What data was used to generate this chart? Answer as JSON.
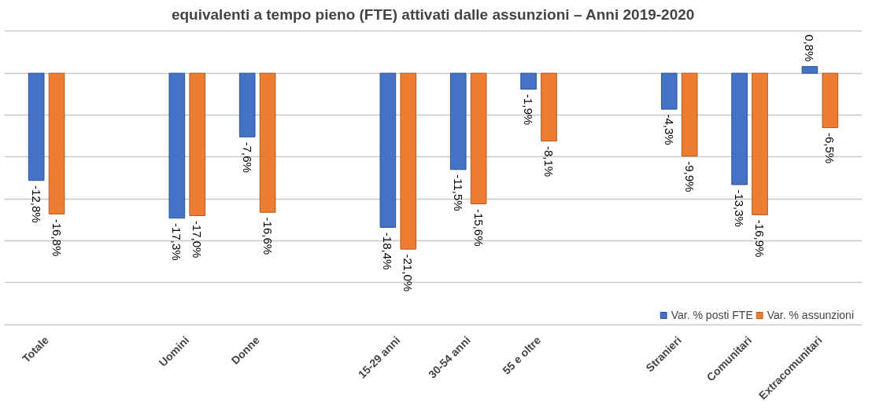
{
  "chart_data": {
    "type": "bar",
    "title": "equivalenti a tempo pieno (FTE) attivati dalle assunzioni – Anni 2019-2020",
    "categories": [
      "Totale",
      null,
      "Uomini",
      "Donne",
      null,
      "15-29 anni",
      "30-54 anni",
      "55 e oltre",
      null,
      "Stranieri",
      "Comunitari",
      "Extracomunitari"
    ],
    "series": [
      {
        "name": "Var. % posti FTE",
        "color": "#4472c4",
        "values": [
          -12.8,
          null,
          -17.3,
          -7.6,
          null,
          -18.4,
          -11.5,
          -1.9,
          null,
          -4.3,
          -13.3,
          0.8
        ],
        "value_labels": [
          "-12,8%",
          null,
          "-17,3%",
          "-7,6%",
          null,
          "-18,4%",
          "-11,5%",
          "-1,9%",
          null,
          "-4,3%",
          "-13,3%",
          "0,8%"
        ]
      },
      {
        "name": "Var. % assunzioni",
        "color": "#ed7d31",
        "values": [
          -16.8,
          null,
          -17.0,
          -16.6,
          null,
          -21.0,
          -15.6,
          -8.1,
          null,
          -9.9,
          -16.9,
          -6.5
        ],
        "value_labels": [
          "-16,8%",
          null,
          "-17,0%",
          "-16,6%",
          null,
          "-21,0%",
          "-15,6%",
          "-8,1%",
          null,
          "-9,9%",
          "-16,9%",
          "-6,5%"
        ]
      }
    ],
    "yticks": [
      {
        "value": -30,
        "label": null
      },
      {
        "value": -25,
        "label": null
      },
      {
        "value": -20,
        "label": null
      },
      {
        "value": -15,
        "label": null
      },
      {
        "value": -10,
        "label": null
      },
      {
        "value": -5,
        "label": null
      },
      {
        "value": 0,
        "label": null
      },
      {
        "value": 5,
        "label": null
      }
    ],
    "tick_labels": "x",
    "grid": "y",
    "legend": "bottom right"
  }
}
